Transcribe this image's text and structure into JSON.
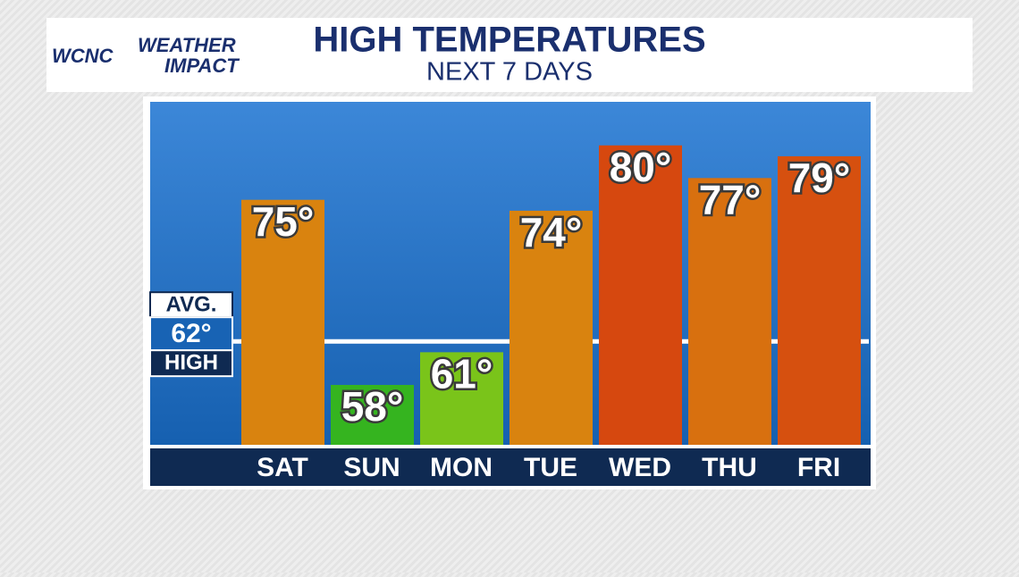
{
  "logo": [
    "WCNC",
    "WEATHER",
    "IMPACT"
  ],
  "chart_data": {
    "type": "bar",
    "title": "HIGH TEMPERATURES",
    "subtitle": "NEXT 7 DAYS",
    "categories": [
      "SAT",
      "SUN",
      "MON",
      "TUE",
      "WED",
      "THU",
      "FRI"
    ],
    "values": [
      75,
      58,
      61,
      74,
      80,
      77,
      79
    ],
    "value_labels": [
      "75°",
      "58°",
      "61°",
      "74°",
      "80°",
      "77°",
      "79°"
    ],
    "colors": [
      "#d9830f",
      "#35b41f",
      "#7ac41a",
      "#d9830f",
      "#d6480f",
      "#d8700f",
      "#d6500f"
    ],
    "ylim": [
      52.5,
      84
    ],
    "average": {
      "value": 62,
      "label_top": "AVG.",
      "value_label": "62°",
      "label_bottom": "HIGH"
    }
  }
}
